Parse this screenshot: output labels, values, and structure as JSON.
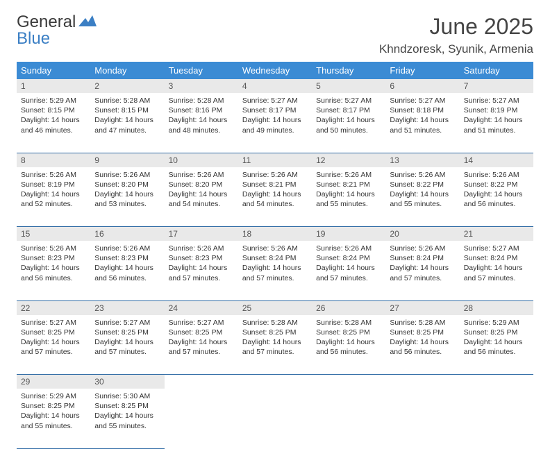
{
  "logo": {
    "word1": "General",
    "word2": "Blue"
  },
  "title": "June 2025",
  "location": "Khndzoresk, Syunik, Armenia",
  "colors": {
    "header_bg": "#3b8bd4",
    "header_text": "#ffffff",
    "daynum_bg": "#e9e9e9",
    "daynum_text": "#555555",
    "border": "#2f6ba5",
    "body_text": "#333333",
    "logo_gray": "#3a3a3a",
    "logo_blue": "#3b7fc4",
    "page_bg": "#ffffff"
  },
  "fonts": {
    "title_size": 32,
    "location_size": 17,
    "weekday_size": 13,
    "daynum_size": 12,
    "cell_size": 10.5
  },
  "weekdays": [
    "Sunday",
    "Monday",
    "Tuesday",
    "Wednesday",
    "Thursday",
    "Friday",
    "Saturday"
  ],
  "weeks": [
    [
      {
        "n": "1",
        "sr": "5:29 AM",
        "ss": "8:15 PM",
        "dl": "14 hours and 46 minutes."
      },
      {
        "n": "2",
        "sr": "5:28 AM",
        "ss": "8:15 PM",
        "dl": "14 hours and 47 minutes."
      },
      {
        "n": "3",
        "sr": "5:28 AM",
        "ss": "8:16 PM",
        "dl": "14 hours and 48 minutes."
      },
      {
        "n": "4",
        "sr": "5:27 AM",
        "ss": "8:17 PM",
        "dl": "14 hours and 49 minutes."
      },
      {
        "n": "5",
        "sr": "5:27 AM",
        "ss": "8:17 PM",
        "dl": "14 hours and 50 minutes."
      },
      {
        "n": "6",
        "sr": "5:27 AM",
        "ss": "8:18 PM",
        "dl": "14 hours and 51 minutes."
      },
      {
        "n": "7",
        "sr": "5:27 AM",
        "ss": "8:19 PM",
        "dl": "14 hours and 51 minutes."
      }
    ],
    [
      {
        "n": "8",
        "sr": "5:26 AM",
        "ss": "8:19 PM",
        "dl": "14 hours and 52 minutes."
      },
      {
        "n": "9",
        "sr": "5:26 AM",
        "ss": "8:20 PM",
        "dl": "14 hours and 53 minutes."
      },
      {
        "n": "10",
        "sr": "5:26 AM",
        "ss": "8:20 PM",
        "dl": "14 hours and 54 minutes."
      },
      {
        "n": "11",
        "sr": "5:26 AM",
        "ss": "8:21 PM",
        "dl": "14 hours and 54 minutes."
      },
      {
        "n": "12",
        "sr": "5:26 AM",
        "ss": "8:21 PM",
        "dl": "14 hours and 55 minutes."
      },
      {
        "n": "13",
        "sr": "5:26 AM",
        "ss": "8:22 PM",
        "dl": "14 hours and 55 minutes."
      },
      {
        "n": "14",
        "sr": "5:26 AM",
        "ss": "8:22 PM",
        "dl": "14 hours and 56 minutes."
      }
    ],
    [
      {
        "n": "15",
        "sr": "5:26 AM",
        "ss": "8:23 PM",
        "dl": "14 hours and 56 minutes."
      },
      {
        "n": "16",
        "sr": "5:26 AM",
        "ss": "8:23 PM",
        "dl": "14 hours and 56 minutes."
      },
      {
        "n": "17",
        "sr": "5:26 AM",
        "ss": "8:23 PM",
        "dl": "14 hours and 57 minutes."
      },
      {
        "n": "18",
        "sr": "5:26 AM",
        "ss": "8:24 PM",
        "dl": "14 hours and 57 minutes."
      },
      {
        "n": "19",
        "sr": "5:26 AM",
        "ss": "8:24 PM",
        "dl": "14 hours and 57 minutes."
      },
      {
        "n": "20",
        "sr": "5:26 AM",
        "ss": "8:24 PM",
        "dl": "14 hours and 57 minutes."
      },
      {
        "n": "21",
        "sr": "5:27 AM",
        "ss": "8:24 PM",
        "dl": "14 hours and 57 minutes."
      }
    ],
    [
      {
        "n": "22",
        "sr": "5:27 AM",
        "ss": "8:25 PM",
        "dl": "14 hours and 57 minutes."
      },
      {
        "n": "23",
        "sr": "5:27 AM",
        "ss": "8:25 PM",
        "dl": "14 hours and 57 minutes."
      },
      {
        "n": "24",
        "sr": "5:27 AM",
        "ss": "8:25 PM",
        "dl": "14 hours and 57 minutes."
      },
      {
        "n": "25",
        "sr": "5:28 AM",
        "ss": "8:25 PM",
        "dl": "14 hours and 57 minutes."
      },
      {
        "n": "26",
        "sr": "5:28 AM",
        "ss": "8:25 PM",
        "dl": "14 hours and 56 minutes."
      },
      {
        "n": "27",
        "sr": "5:28 AM",
        "ss": "8:25 PM",
        "dl": "14 hours and 56 minutes."
      },
      {
        "n": "28",
        "sr": "5:29 AM",
        "ss": "8:25 PM",
        "dl": "14 hours and 56 minutes."
      }
    ],
    [
      {
        "n": "29",
        "sr": "5:29 AM",
        "ss": "8:25 PM",
        "dl": "14 hours and 55 minutes."
      },
      {
        "n": "30",
        "sr": "5:30 AM",
        "ss": "8:25 PM",
        "dl": "14 hours and 55 minutes."
      },
      null,
      null,
      null,
      null,
      null
    ]
  ],
  "labels": {
    "sunrise": "Sunrise:",
    "sunset": "Sunset:",
    "daylight": "Daylight:"
  }
}
